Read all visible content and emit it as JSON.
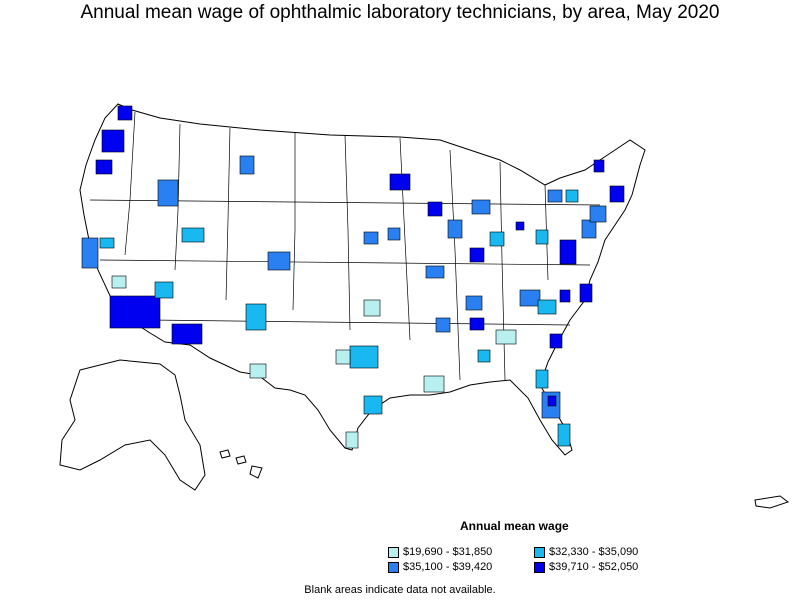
{
  "title": "Annual mean wage of ophthalmic laboratory technicians, by area, May 2020",
  "legend": {
    "title": "Annual mean wage",
    "items": [
      {
        "label": "$19,690 - $31,850",
        "color": "#b8f0f0"
      },
      {
        "label": "$32,330 - $35,090",
        "color": "#19b8f0"
      },
      {
        "label": "$35,100 - $39,420",
        "color": "#2a80f0"
      },
      {
        "label": "$39,710 - $52,050",
        "color": "#0000f0"
      }
    ]
  },
  "footnote": "Blank areas indicate data not available."
}
